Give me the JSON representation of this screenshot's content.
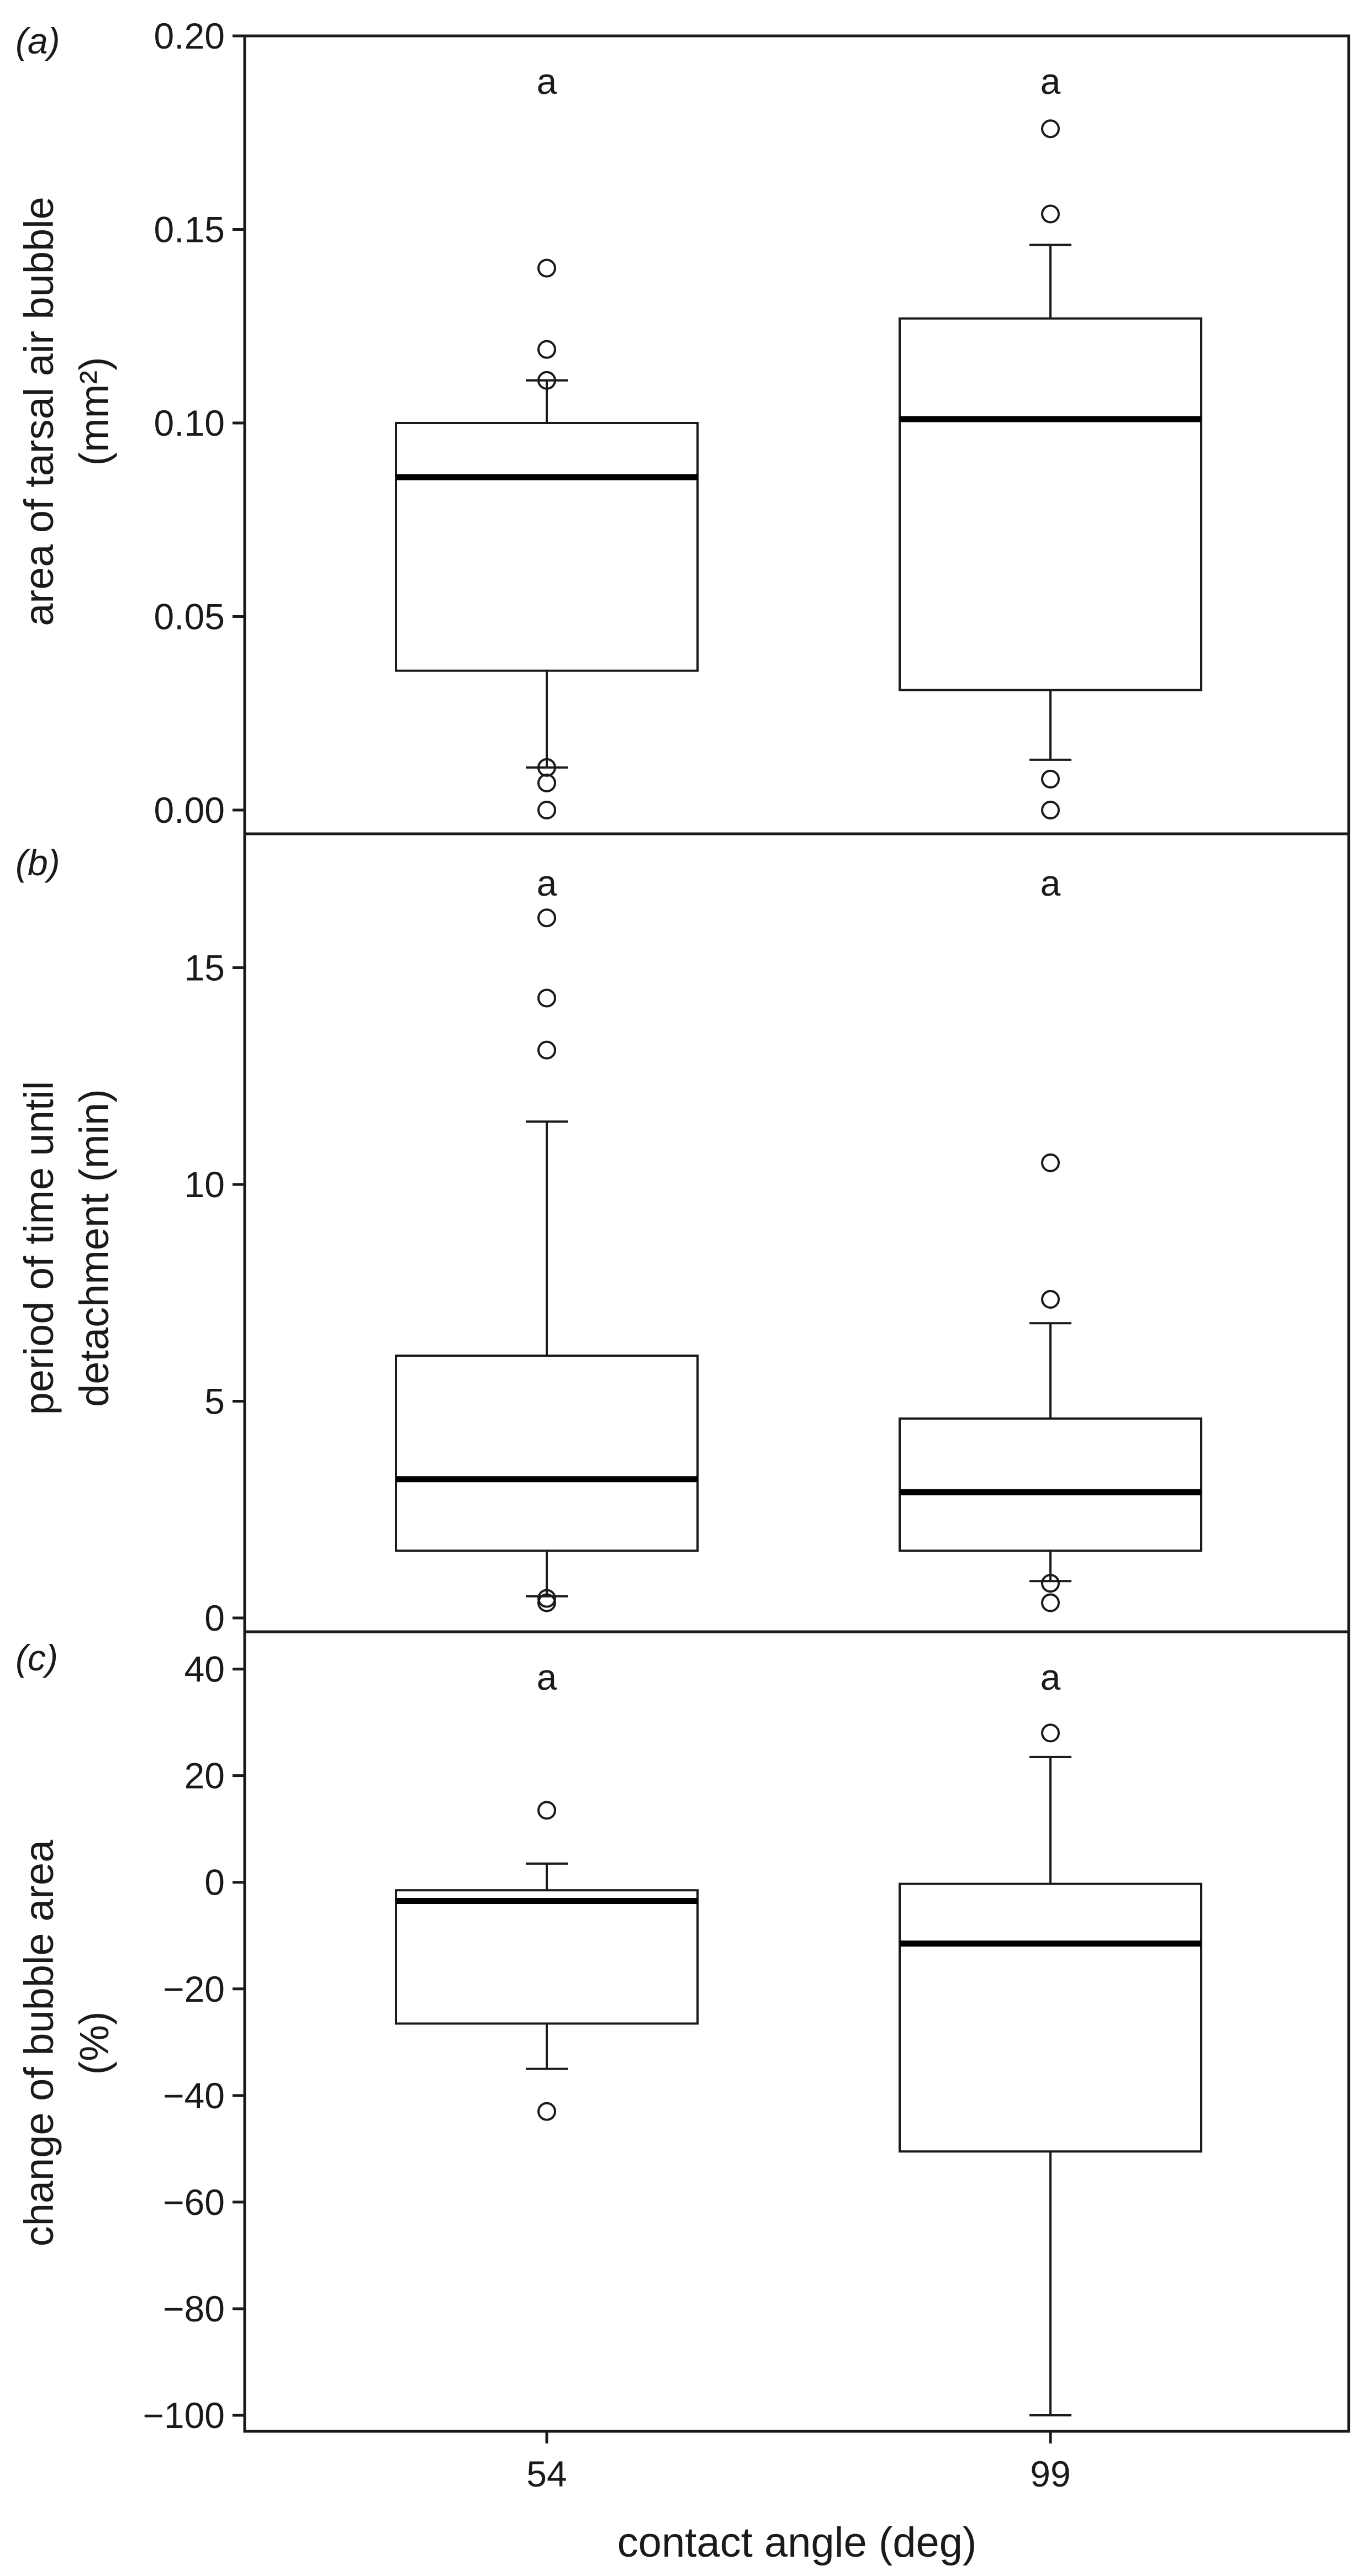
{
  "chart_data": [
    {
      "type": "box",
      "panel_label": "(a)",
      "tag_letter": "a",
      "ylabel_lines": [
        "area of tarsal air bubble",
        "(mm²)"
      ],
      "ylim": [
        0,
        0.2
      ],
      "yticks": [
        0.0,
        0.05,
        0.1,
        0.15,
        0.2
      ],
      "ytick_labels": [
        "0.00",
        "0.05",
        "0.10",
        "0.15",
        "0.20"
      ],
      "categories": [
        "54",
        "99"
      ],
      "boxes": [
        {
          "category": "54",
          "whisker_low": 0.011,
          "q1": 0.036,
          "median": 0.086,
          "q3": 0.1,
          "whisker_high": 0.111,
          "outliers": [
            0.0,
            0.007,
            0.011,
            0.111,
            0.119,
            0.14
          ],
          "sig": "a"
        },
        {
          "category": "99",
          "whisker_low": 0.013,
          "q1": 0.031,
          "median": 0.101,
          "q3": 0.127,
          "whisker_high": 0.146,
          "outliers": [
            0.0,
            0.008,
            0.154,
            0.176
          ],
          "sig": "a"
        }
      ]
    },
    {
      "type": "box",
      "panel_label": "(b)",
      "tag_letter": "b",
      "ylabel_lines": [
        "period of time until",
        "detachment (min)"
      ],
      "ylim": [
        0,
        18
      ],
      "yticks": [
        0,
        5,
        10,
        15
      ],
      "ytick_labels": [
        "0",
        "5",
        "10",
        "15"
      ],
      "categories": [
        "54",
        "99"
      ],
      "boxes": [
        {
          "category": "54",
          "whisker_low": 0.5,
          "q1": 1.55,
          "median": 3.2,
          "q3": 6.05,
          "whisker_high": 11.45,
          "outliers": [
            0.35,
            0.45,
            13.1,
            14.3,
            16.15
          ],
          "sig": "a"
        },
        {
          "category": "99",
          "whisker_low": 0.85,
          "q1": 1.55,
          "median": 2.9,
          "q3": 4.6,
          "whisker_high": 6.8,
          "outliers": [
            0.35,
            0.8,
            7.35,
            10.5
          ],
          "sig": "a"
        }
      ]
    },
    {
      "type": "box",
      "panel_label": "(c)",
      "tag_letter": "c",
      "ylabel_lines": [
        "change of bubble area",
        "(%)"
      ],
      "ylim": [
        -103,
        47
      ],
      "yticks": [
        40,
        20,
        0,
        -20,
        -40,
        -60,
        -80,
        -100
      ],
      "ytick_labels": [
        "40",
        "20",
        "0",
        "−20",
        "−40",
        "−60",
        "−80",
        "−100"
      ],
      "xlabel": "contact angle (deg)",
      "categories": [
        "54",
        "99"
      ],
      "boxes": [
        {
          "category": "54",
          "whisker_low": -35,
          "q1": -26.5,
          "median": -3.5,
          "q3": -1.5,
          "whisker_high": 3.5,
          "outliers": [
            -43,
            13.5
          ],
          "sig": "a"
        },
        {
          "category": "99",
          "whisker_low": -100,
          "q1": -50.5,
          "median": -11.5,
          "q3": -0.3,
          "whisker_high": 23.5,
          "outliers": [
            28
          ],
          "sig": "a"
        }
      ]
    }
  ]
}
